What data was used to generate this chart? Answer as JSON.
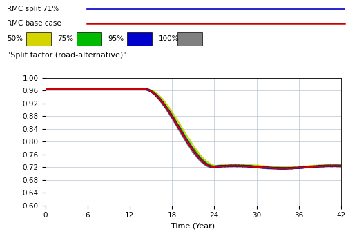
{
  "xlabel": "Time (Year)",
  "ylabel_text": "\"Split factor (road-alternative)\"",
  "xlim": [
    0,
    42
  ],
  "ylim": [
    0.6,
    1.0
  ],
  "xticks": [
    0,
    6,
    12,
    18,
    24,
    30,
    36,
    42
  ],
  "yticks": [
    0.6,
    0.64,
    0.68,
    0.72,
    0.76,
    0.8,
    0.84,
    0.88,
    0.92,
    0.96,
    1.0
  ],
  "legend_labels": [
    "50%",
    "75%",
    "95%",
    "100%"
  ],
  "legend_colors": [
    "#d4d400",
    "#00bb00",
    "#0000cc",
    "#808080"
  ],
  "rmc_split_color": "#0000cc",
  "rmc_base_color": "#cc0000",
  "line_colors": {
    "p50": "#d4d400",
    "p75": "#00bb00",
    "p95": "#0000cc",
    "p100": "#808080",
    "rmc_split": "#0000cc",
    "rmc_base": "#cc0000"
  },
  "curve_start_y": 0.965,
  "curve_end_y": 0.72,
  "curve_transition_start": 14,
  "curve_transition_end": 24
}
